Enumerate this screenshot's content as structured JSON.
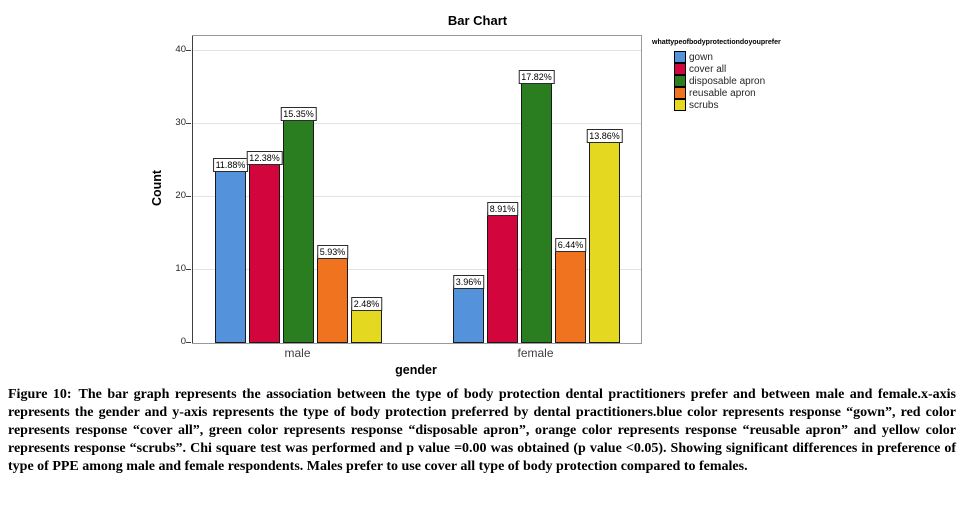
{
  "chart_data": {
    "type": "bar",
    "title": "Bar Chart",
    "xlabel": "gender",
    "ylabel": "Count",
    "ylim": [
      0,
      42
    ],
    "yticks": [
      0,
      10,
      20,
      30,
      40
    ],
    "grid": true,
    "categories": [
      "male",
      "female"
    ],
    "legend_title": "whattypeofbodyprotectiondoyouprefer",
    "legend_position": "right",
    "series": [
      {
        "name": "gown",
        "color": "#5592dc",
        "values": [
          24,
          8
        ],
        "bar_labels": [
          "11.88%",
          "3.96%"
        ]
      },
      {
        "name": "cover all",
        "color": "#d2063c",
        "values": [
          25,
          18
        ],
        "bar_labels": [
          "12.38%",
          "8.91%"
        ]
      },
      {
        "name": "disposable apron",
        "color": "#2a7e20",
        "values": [
          31,
          36
        ],
        "bar_labels": [
          "15.35%",
          "17.82%"
        ]
      },
      {
        "name": "reusable apron",
        "color": "#f07420",
        "values": [
          12,
          13
        ],
        "bar_labels": [
          "5.93%",
          "6.44%"
        ]
      },
      {
        "name": "scrubs",
        "color": "#e5d820",
        "values": [
          5,
          28
        ],
        "bar_labels": [
          "2.48%",
          "13.86%"
        ]
      }
    ]
  },
  "caption": {
    "label": "Figure 10:",
    "body": "The bar graph represents the association between the type of body protection dental practitioners prefer and between male and female.x-axis represents the gender and y-axis represents the type of body protection preferred by dental practitioners.blue color represents response “gown”, red color represents response “cover all”, green color represents response “disposable apron”, orange color represents response “reusable apron” and yellow color represents response “scrubs”. Chi square test was performed and p value =0.00 was obtained (p value <0.05). Showing significant differences in preference of type of PPE among male and female respondents. Males prefer to use cover all type of body protection compared to females."
  }
}
